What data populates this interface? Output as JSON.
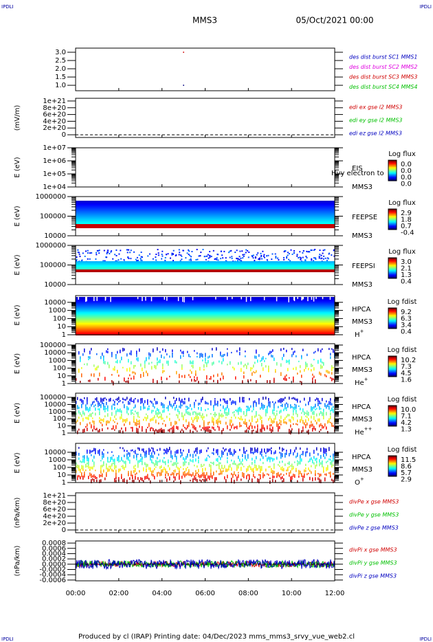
{
  "header": {
    "left": "IPDLI",
    "right": "IPDLI",
    "spacecraft": "MMS3",
    "date": "05/Oct/2021 00:00"
  },
  "footer": {
    "left": "IPDLI",
    "right": "IPDLI",
    "text": "Produced by cl (IRAP)   Printing date: 04/Dec/2023   mms_mms3_srvy_vue_web2.cl"
  },
  "xaxis": {
    "xlim": [
      0,
      12
    ],
    "xticks": [
      {
        "value": 0,
        "label": "00:00"
      },
      {
        "value": 2,
        "label": "02:00"
      },
      {
        "value": 4,
        "label": "04:00"
      },
      {
        "value": 6,
        "label": "06:00"
      },
      {
        "value": 8,
        "label": "08:00"
      },
      {
        "value": 10,
        "label": "10:00"
      },
      {
        "value": 12,
        "label": "12:00"
      }
    ]
  },
  "chart_data": [
    {
      "type": "scatter",
      "ylim": [
        0.67,
        3.25
      ],
      "yticks": [
        {
          "value": 3,
          "label": "3.0"
        },
        2.5,
        {
          "value": 2,
          "label": "2.0"
        },
        1.5,
        {
          "value": 1,
          "label": "1.0"
        }
      ],
      "series": [
        {
          "name": "des dist burst SC1 MMS1",
          "color": "#0000c0",
          "x": [],
          "values": []
        },
        {
          "name": "des dist burst SC2 MMS2",
          "color": "#e000e0",
          "x": [],
          "values": []
        },
        {
          "name": "des dist burst SC3 MMS3",
          "color": "#d00000",
          "x": [
            5.0,
            5.0
          ],
          "values": [
            3.0,
            1.0
          ]
        },
        {
          "name": "des dist burst SC4 MMS4",
          "color": "#00c000",
          "x": [],
          "values": []
        }
      ]
    },
    {
      "type": "line",
      "ylabel": "(mV/m)",
      "ylim": [
        -8e+19,
        1.08e+21
      ],
      "yticks": [
        {
          "value": 1e+21,
          "label": "1e+21"
        },
        {
          "value": 8e+20,
          "label": "8e+20"
        },
        {
          "value": 6e+20,
          "label": "6e+20"
        },
        {
          "value": 4e+20,
          "label": "4e+20"
        },
        {
          "value": 2e+20,
          "label": "2e+20"
        },
        0
      ],
      "series": [
        {
          "name": "edi ex gse l2 MMS3",
          "color": "#d00000"
        },
        {
          "name": "edi ey gse l2 MMS3",
          "color": "#00c000"
        },
        {
          "name": "edi ez gse l2 MMS3",
          "color": "#0000c0"
        }
      ]
    },
    {
      "type": "spectrogram",
      "ylabel": "E (eV)",
      "log": true,
      "ylim": [
        10000,
        10000000
      ],
      "yticks": [
        {
          "value": 10000000,
          "label": "1e+07"
        },
        {
          "value": 1000000,
          "label": "1e+06"
        },
        {
          "value": 100000,
          "label": "1e+05"
        },
        {
          "value": 10000,
          "label": "1e+04"
        }
      ],
      "labels": [
        "EIS",
        "MMS3"
      ],
      "note": "Hvy electron to",
      "colorbar": {
        "title": "Log flux",
        "ticks": [
          "0.0",
          "0.0",
          "0.0",
          "0.0"
        ]
      }
    },
    {
      "type": "spectrogram",
      "ylabel": "E (eV)",
      "log": true,
      "ylim": [
        10000,
        1000000
      ],
      "yticks": [
        1000000,
        100000,
        10000
      ],
      "labels": [
        "FEEPSE",
        "MMS3"
      ],
      "colorbar": {
        "title": "Log flux",
        "ticks": [
          "2.9",
          "1.8",
          "0.7",
          "-0.4"
        ]
      }
    },
    {
      "type": "spectrogram",
      "ylabel": "E (eV)",
      "log": true,
      "ylim": [
        10000,
        1000000
      ],
      "yticks": [
        1000000,
        100000,
        10000
      ],
      "labels": [
        "FEEPSI",
        "MMS3"
      ],
      "colorbar": {
        "title": "Log flux",
        "ticks": [
          "3.0",
          "2.1",
          "1.3",
          "0.4"
        ]
      }
    },
    {
      "type": "spectrogram",
      "ylabel": "E (eV)",
      "log": true,
      "ylim": [
        1,
        68000
      ],
      "yticks": [
        10000,
        1000,
        100,
        10,
        1
      ],
      "labels": [
        "HPCA",
        "MMS3"
      ],
      "species": {
        "base": "H",
        "sup": "+"
      },
      "colorbar": {
        "title": "Log fdist",
        "ticks": [
          "9.2",
          "6.3",
          "3.4",
          "0.4"
        ]
      }
    },
    {
      "type": "spectrogram",
      "ylabel": "E (eV)",
      "log": true,
      "ylim": [
        1,
        150000
      ],
      "yticks": [
        100000,
        10000,
        1000,
        100,
        10,
        1
      ],
      "labels": [
        "HPCA",
        "MMS3"
      ],
      "species": {
        "base": "He",
        "sup": "+"
      },
      "colorbar": {
        "title": "Log fdist",
        "ticks": [
          "10.2",
          "7.3",
          "4.5",
          "1.6"
        ]
      }
    },
    {
      "type": "spectrogram",
      "ylabel": "E (eV)",
      "log": true,
      "ylim": [
        1,
        380000
      ],
      "yticks": [
        100000,
        10000,
        1000,
        100,
        10,
        1
      ],
      "labels": [
        "HPCA",
        "MMS3"
      ],
      "species": {
        "base": "He",
        "sup": "++"
      },
      "colorbar": {
        "title": "Log fdist",
        "ticks": [
          "10.0",
          "7.1",
          "4.2",
          "1.3"
        ]
      }
    },
    {
      "type": "spectrogram",
      "ylabel": "E (eV)",
      "log": true,
      "ylim": [
        1,
        150000
      ],
      "yticks": [
        10000,
        1000,
        100,
        10,
        1
      ],
      "labels": [
        "HPCA",
        "MMS3"
      ],
      "species": {
        "base": "O",
        "sup": "+"
      },
      "colorbar": {
        "title": "Log fdist",
        "ticks": [
          "11.5",
          "8.6",
          "5.7",
          "2.9"
        ]
      }
    },
    {
      "type": "line",
      "ylabel": "(nPa/km)",
      "ylim": [
        -8e+19,
        1.08e+21
      ],
      "yticks": [
        {
          "value": 1e+21,
          "label": "1e+21"
        },
        {
          "value": 8e+20,
          "label": "8e+20"
        },
        {
          "value": 6e+20,
          "label": "6e+20"
        },
        {
          "value": 4e+20,
          "label": "4e+20"
        },
        {
          "value": 2e+20,
          "label": "2e+20"
        },
        0
      ],
      "series": [
        {
          "name": "divPe x gse MMS3",
          "color": "#d00000"
        },
        {
          "name": "divPe y gse MMS3",
          "color": "#00c000"
        },
        {
          "name": "divPe z gse MMS3",
          "color": "#0000c0"
        }
      ]
    },
    {
      "type": "noise",
      "ylabel": "(nPa/km)",
      "ylim": [
        -0.00063,
        0.00088
      ],
      "yticks": [
        0.0008,
        0.0006,
        0.0004,
        0.0002,
        {
          "value": 0,
          "label": "0.0000"
        },
        -0.0002,
        -0.0004,
        -0.0006
      ],
      "series": [
        {
          "name": "divPi x gse MMS3",
          "color": "#d00000"
        },
        {
          "name": "divPi y gse MMS3",
          "color": "#00c000"
        },
        {
          "name": "divPi z gse MMS3",
          "color": "#0000c0"
        }
      ]
    }
  ]
}
